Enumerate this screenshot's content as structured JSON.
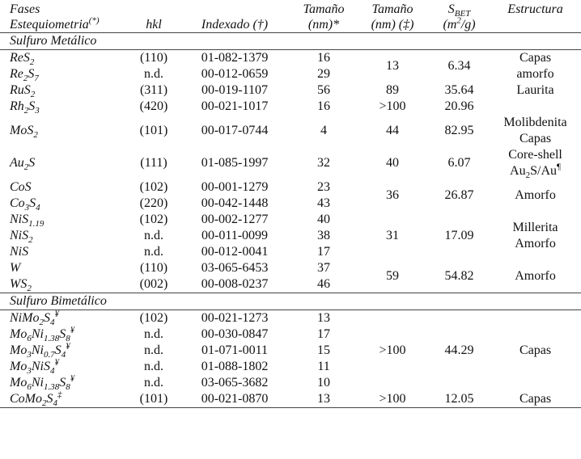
{
  "header": {
    "title": "Fases",
    "columns": [
      [
        [
          {
            "t": "Estequiometria"
          },
          {
            "sup": "(*)"
          }
        ]
      ],
      [
        "hkl"
      ],
      [
        "Indexado (†)"
      ],
      [
        "Tamaño",
        "(nm)*"
      ],
      [
        "Tamaño",
        "(nm) (‡)"
      ],
      [
        [
          {
            "t": "S"
          },
          {
            "sub": "BET"
          }
        ],
        [
          {
            "t": "(m"
          },
          {
            "sup": "2"
          },
          {
            "t": "/g)"
          }
        ]
      ],
      [
        "Estructura"
      ]
    ]
  },
  "sections": [
    {
      "title": "Sulfuro Metálico",
      "groups": [
        {
          "rows": [
            {
              "formula": [
                {
                  "t": "ReS"
                },
                {
                  "sub": "2"
                }
              ],
              "hkl": "(110)",
              "index": "01-082-1379",
              "size": "16"
            },
            {
              "formula": [
                {
                  "t": "Re"
                },
                {
                  "sub": "2"
                },
                {
                  "t": "S"
                },
                {
                  "sub": "7"
                }
              ],
              "hkl": "n.d.",
              "index": "00-012-0659",
              "size": "29"
            }
          ],
          "size2": "13",
          "sbet": "6.34",
          "structure": [
            "Capas",
            "amorfo"
          ]
        },
        {
          "rows": [
            {
              "formula": [
                {
                  "t": "RuS"
                },
                {
                  "sub": "2"
                }
              ],
              "hkl": "(311)",
              "index": "00-019-1107",
              "size": "56"
            }
          ],
          "size2": "89",
          "sbet": "35.64",
          "structure": [
            "Laurita"
          ]
        },
        {
          "rows": [
            {
              "formula": [
                {
                  "t": "Rh"
                },
                {
                  "sub": "2"
                },
                {
                  "t": "S"
                },
                {
                  "sub": "3"
                }
              ],
              "hkl": "(420)",
              "index": "00-021-1017",
              "size": "16"
            }
          ],
          "size2": ">100",
          "sbet": "20.96"
        },
        {
          "rows": [
            {
              "formula": [
                {
                  "t": "MoS"
                },
                {
                  "sub": "2"
                }
              ],
              "hkl": "(101)",
              "index": "00-017-0744",
              "size": "4"
            }
          ],
          "size2": "44",
          "sbet": "82.95",
          "structure": [
            "Molibdenita",
            "Capas"
          ]
        },
        {
          "rows": [
            {
              "formula": [
                {
                  "t": "Au"
                },
                {
                  "sub": "2"
                },
                {
                  "t": "S"
                }
              ],
              "hkl": "(111)",
              "index": "01-085-1997",
              "size": "32"
            }
          ],
          "size2": "40",
          "sbet": "6.07",
          "structure": [
            "Core-shell",
            [
              {
                "t": "Au"
              },
              {
                "sub": "2"
              },
              {
                "t": "S/Au"
              },
              {
                "sup": "¶"
              }
            ]
          ]
        },
        {
          "rows": [
            {
              "formula": [
                {
                  "t": "CoS"
                }
              ],
              "hkl": "(102)",
              "index": "00-001-1279",
              "size": "23"
            },
            {
              "formula": [
                {
                  "t": "Co"
                },
                {
                  "sub": "3"
                },
                {
                  "t": "S"
                },
                {
                  "sub": "4"
                }
              ],
              "hkl": "(220)",
              "index": "00-042-1448",
              "size": "43"
            }
          ],
          "size2": "36",
          "sbet": "26.87",
          "structure": [
            "Amorfo"
          ]
        },
        {
          "rows": [
            {
              "formula": [
                {
                  "t": "NiS"
                },
                {
                  "sub": "1.19"
                }
              ],
              "hkl": "(102)",
              "index": "00-002-1277",
              "size": "40"
            },
            {
              "formula": [
                {
                  "t": "NiS"
                },
                {
                  "sub": "2"
                }
              ],
              "hkl": "n.d.",
              "index": "00-011-0099",
              "size": "38"
            },
            {
              "formula": [
                {
                  "t": "NiS"
                }
              ],
              "hkl": "n.d.",
              "index": "00-012-0041",
              "size": "17"
            }
          ],
          "size2": "31",
          "sbet": "17.09",
          "structure": [
            "Millerita",
            "Amorfo"
          ]
        },
        {
          "rows": [
            {
              "formula": [
                {
                  "t": "W"
                }
              ],
              "hkl": "(110)",
              "index": "03-065-6453",
              "size": "37"
            },
            {
              "formula": [
                {
                  "t": "WS"
                },
                {
                  "sub": "2"
                }
              ],
              "hkl": "(002)",
              "index": "00-008-0237",
              "size": "46"
            }
          ],
          "size2": "59",
          "sbet": "54.82",
          "structure": [
            "Amorfo"
          ]
        }
      ]
    },
    {
      "title": "Sulfuro Bimetálico",
      "groups": [
        {
          "rows": [
            {
              "formula": [
                {
                  "t": "NiMo"
                },
                {
                  "sub": "2"
                },
                {
                  "t": "S"
                },
                {
                  "sub": "4"
                },
                {
                  "sup": "¥"
                }
              ],
              "hkl": "(102)",
              "index": "00-021-1273",
              "size": "13"
            },
            {
              "formula": [
                {
                  "t": "Mo"
                },
                {
                  "sub": "6"
                },
                {
                  "t": "Ni"
                },
                {
                  "sub": "1.38"
                },
                {
                  "t": "S"
                },
                {
                  "sub": "8"
                },
                {
                  "sup": "¥"
                }
              ],
              "hkl": "n.d.",
              "index": "00-030-0847",
              "size": "17"
            },
            {
              "formula": [
                {
                  "t": "Mo"
                },
                {
                  "sub": "3"
                },
                {
                  "t": "Ni"
                },
                {
                  "sub": "0.7"
                },
                {
                  "t": "S"
                },
                {
                  "sub": "4"
                },
                {
                  "sup": "¥"
                }
              ],
              "hkl": "n.d.",
              "index": "01-071-0011",
              "size": "15"
            },
            {
              "formula": [
                {
                  "t": "Mo"
                },
                {
                  "sub": "3"
                },
                {
                  "t": "NiS"
                },
                {
                  "sub": "4"
                },
                {
                  "sup": "¥"
                }
              ],
              "hkl": "n.d.",
              "index": "01-088-1802",
              "size": "11"
            },
            {
              "formula": [
                {
                  "t": "Mo"
                },
                {
                  "sub": "6"
                },
                {
                  "t": "Ni"
                },
                {
                  "sub": "1.38"
                },
                {
                  "t": "S"
                },
                {
                  "sub": "8"
                },
                {
                  "sup": "¥"
                }
              ],
              "hkl": "n.d.",
              "index": "03-065-3682",
              "size": "10"
            }
          ],
          "size2": ">100",
          "sbet": "44.29",
          "structure": [
            "Capas"
          ]
        },
        {
          "rows": [
            {
              "formula": [
                {
                  "t": "CoMo"
                },
                {
                  "sub": "2"
                },
                {
                  "t": "S"
                },
                {
                  "sub": "4"
                },
                {
                  "sup": "‡"
                }
              ],
              "hkl": "(101)",
              "index": "00-021-0870",
              "size": "13"
            }
          ],
          "size2": ">100",
          "sbet": "12.05",
          "structure": [
            "Capas"
          ]
        }
      ]
    }
  ]
}
